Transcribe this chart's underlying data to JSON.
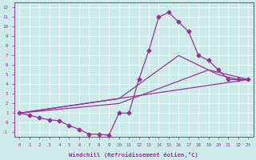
{
  "background_color": "#cceae8",
  "line_color": "#993399",
  "xlabel": "Windchill (Refroidissement éolien,°C)",
  "xlim": [
    -0.5,
    23.5
  ],
  "ylim": [
    -1.5,
    12.5
  ],
  "xticks": [
    0,
    1,
    2,
    3,
    4,
    5,
    6,
    7,
    8,
    9,
    10,
    11,
    12,
    13,
    14,
    15,
    16,
    17,
    18,
    19,
    20,
    21,
    22,
    23
  ],
  "yticks": [
    -1,
    0,
    1,
    2,
    3,
    4,
    5,
    6,
    7,
    8,
    9,
    10,
    11,
    12
  ],
  "series1_x": [
    0,
    1,
    2,
    3,
    4,
    5,
    6,
    7,
    8,
    9,
    10,
    11,
    12,
    13,
    14,
    15,
    16,
    17,
    18,
    19,
    20,
    21,
    22,
    23
  ],
  "series1_y": [
    1,
    0.8,
    0.5,
    0.3,
    0.2,
    -0.3,
    -0.7,
    -1.2,
    -1.2,
    -1.3,
    1.0,
    1.0,
    4.5,
    7.5,
    11.0,
    11.5,
    10.5,
    9.5,
    7.0,
    6.5,
    5.5,
    4.5,
    4.5,
    4.5
  ],
  "series2_x": [
    0,
    23
  ],
  "series2_y": [
    1,
    4.5
  ],
  "series3_x": [
    0,
    10,
    19,
    20,
    22,
    23
  ],
  "series3_y": [
    1,
    2.0,
    5.5,
    5.0,
    4.5,
    4.5
  ],
  "series4_x": [
    0,
    10,
    16,
    19,
    23
  ],
  "series4_y": [
    1,
    2.5,
    7.0,
    5.5,
    4.5
  ],
  "marker": "D",
  "markersize": 2.5,
  "linewidth": 0.9
}
